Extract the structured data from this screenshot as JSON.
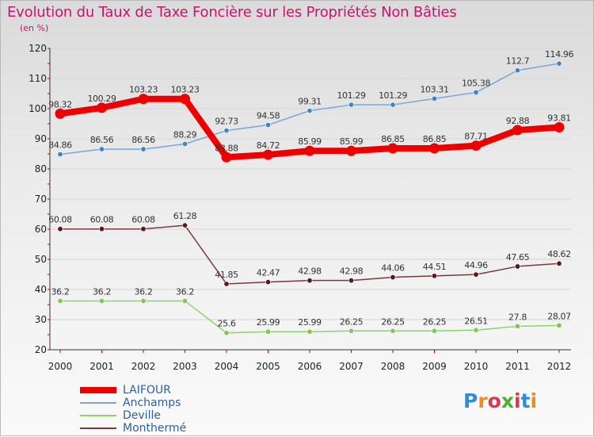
{
  "title": "Evolution du Taux de Taxe Foncière sur les Propriétés Non Bâties",
  "unit": "(en %)",
  "logo": {
    "text": "Proxiti",
    "colors": [
      "#2a8fd8",
      "#f08a1c",
      "#e3354a",
      "#4ab030",
      "#e3354a",
      "#2a8fd8",
      "#f08a1c"
    ]
  },
  "chart_data": {
    "type": "line",
    "title": "Evolution du Taux de Taxe Foncière sur les Propriétés Non Bâties",
    "ylabel": "(en %)",
    "xlabel": "",
    "ylim": [
      20,
      120
    ],
    "yticks": [
      20,
      30,
      40,
      50,
      60,
      70,
      80,
      90,
      100,
      110,
      120
    ],
    "categories": [
      "2000",
      "2001",
      "2002",
      "2003",
      "2004",
      "2005",
      "2006",
      "2007",
      "2008",
      "2009",
      "2010",
      "2011",
      "2012"
    ],
    "series": [
      {
        "name": "LAIFOUR",
        "color": "#ee0000",
        "line_color": "#ee0000",
        "marker_color": "#ee0000",
        "values": [
          98.32,
          100.29,
          103.23,
          103.23,
          83.88,
          84.72,
          85.99,
          85.99,
          86.85,
          86.85,
          87.71,
          92.88,
          93.81
        ],
        "labels": [
          "98.32",
          "100.29",
          "103.23",
          "103.23",
          "83.88",
          "84.72",
          "85.99",
          "85.99",
          "86.85",
          "86.85",
          "87.71",
          "92.88",
          "93.81"
        ]
      },
      {
        "name": "Anchamps",
        "color": "#7aa6d6",
        "line_color": "#7aa6d6",
        "marker_color": "#3a86c8",
        "values": [
          84.86,
          86.56,
          86.56,
          88.29,
          92.73,
          94.58,
          99.31,
          101.29,
          101.29,
          103.31,
          105.38,
          112.7,
          114.96
        ],
        "labels": [
          "84.86",
          "86.56",
          "86.56",
          "88.29",
          "92.73",
          "94.58",
          "99.31",
          "101.29",
          "101.29",
          "103.31",
          "105.38",
          "112.7",
          "114.96"
        ]
      },
      {
        "name": "Deville",
        "color": "#8cd46a",
        "line_color": "#8cd46a",
        "marker_color": "#7cc855",
        "values": [
          36.2,
          36.2,
          36.2,
          36.2,
          25.6,
          25.99,
          25.99,
          26.25,
          26.25,
          26.25,
          26.51,
          27.8,
          28.07
        ],
        "labels": [
          "36.2",
          "36.2",
          "36.2",
          "36.2",
          "25.6",
          "25.99",
          "25.99",
          "26.25",
          "26.25",
          "26.25",
          "26.51",
          "27.8",
          "28.07"
        ]
      },
      {
        "name": "Monthermé",
        "color": "#7a3a3a",
        "line_color": "#7a3a3a",
        "marker_color": "#5a1818",
        "values": [
          60.08,
          60.08,
          60.08,
          61.28,
          41.85,
          42.47,
          42.98,
          42.98,
          44.06,
          44.51,
          44.96,
          47.65,
          48.62
        ],
        "labels": [
          "60.08",
          "60.08",
          "60.08",
          "61.28",
          "41.85",
          "42.47",
          "42.98",
          "42.98",
          "44.06",
          "44.51",
          "44.96",
          "47.65",
          "48.62"
        ]
      }
    ]
  }
}
